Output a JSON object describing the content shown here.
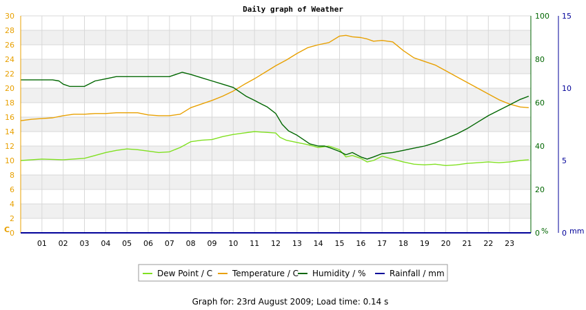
{
  "chart_data": {
    "type": "line",
    "title": "Daily graph of Weather",
    "x_ticks": [
      "01",
      "02",
      "03",
      "04",
      "05",
      "06",
      "07",
      "08",
      "09",
      "10",
      "11",
      "12",
      "13",
      "14",
      "15",
      "16",
      "17",
      "18",
      "19",
      "20",
      "21",
      "22",
      "23"
    ],
    "xlim": [
      0,
      24
    ],
    "axes": {
      "left": {
        "unit": "C",
        "ylim": [
          0,
          30
        ],
        "ticks": [
          0,
          2,
          4,
          6,
          8,
          10,
          12,
          14,
          16,
          18,
          20,
          22,
          24,
          26,
          28,
          30
        ],
        "color": "#e8a000"
      },
      "right1": {
        "unit": "%",
        "ylim": [
          0,
          100
        ],
        "ticks": [
          0,
          20,
          40,
          60,
          80,
          100
        ],
        "color": "#006600"
      },
      "right2": {
        "unit": "mm",
        "ylim": [
          0,
          15
        ],
        "ticks": [
          0,
          5,
          10,
          15
        ],
        "color": "#000099"
      }
    },
    "series": [
      {
        "name": "Dew Point / C",
        "axis": "left",
        "color": "#80e020",
        "x": [
          0,
          1,
          2,
          3,
          3.5,
          4,
          4.5,
          5,
          5.5,
          6,
          6.5,
          7,
          7.5,
          8,
          8.5,
          9,
          9.5,
          10,
          10.5,
          11,
          11.5,
          12,
          12.2,
          12.5,
          13,
          13.5,
          14,
          14.5,
          15,
          15.3,
          15.6,
          16,
          16.3,
          16.6,
          17,
          17.5,
          18,
          18.5,
          19,
          19.5,
          20,
          20.5,
          21,
          21.5,
          22,
          22.5,
          23,
          23.5,
          23.9
        ],
        "y": [
          10.0,
          10.2,
          10.1,
          10.3,
          10.7,
          11.1,
          11.4,
          11.6,
          11.5,
          11.3,
          11.1,
          11.2,
          11.8,
          12.6,
          12.8,
          12.9,
          13.3,
          13.6,
          13.8,
          14.0,
          13.9,
          13.8,
          13.2,
          12.8,
          12.5,
          12.2,
          11.8,
          12.0,
          11.5,
          10.5,
          10.7,
          10.3,
          9.8,
          10.0,
          10.6,
          10.2,
          9.8,
          9.5,
          9.4,
          9.5,
          9.3,
          9.4,
          9.6,
          9.7,
          9.8,
          9.7,
          9.8,
          10.0,
          10.1
        ]
      },
      {
        "name": "Temperature / C",
        "axis": "left",
        "color": "#e8a000",
        "x": [
          0,
          0.5,
          1,
          1.5,
          2,
          2.5,
          3,
          3.5,
          4,
          4.5,
          5,
          5.5,
          6,
          6.5,
          7,
          7.5,
          8,
          8.5,
          9,
          9.5,
          10,
          10.5,
          11,
          11.5,
          12,
          12.5,
          13,
          13.5,
          14,
          14.5,
          15,
          15.3,
          15.6,
          16,
          16.3,
          16.6,
          17,
          17.5,
          18,
          18.5,
          19,
          19.5,
          20,
          20.5,
          21,
          21.5,
          22,
          22.5,
          23,
          23.5,
          23.9
        ],
        "y": [
          15.5,
          15.7,
          15.8,
          15.9,
          16.2,
          16.4,
          16.4,
          16.5,
          16.5,
          16.6,
          16.6,
          16.6,
          16.3,
          16.2,
          16.2,
          16.4,
          17.3,
          17.8,
          18.3,
          18.9,
          19.6,
          20.5,
          21.3,
          22.2,
          23.1,
          23.9,
          24.8,
          25.6,
          26.0,
          26.3,
          27.2,
          27.3,
          27.1,
          27.0,
          26.8,
          26.5,
          26.6,
          26.4,
          25.2,
          24.2,
          23.7,
          23.2,
          22.4,
          21.6,
          20.8,
          20.0,
          19.2,
          18.4,
          17.8,
          17.4,
          17.3
        ]
      },
      {
        "name": "Humidity / %",
        "axis": "right1",
        "color": "#006600",
        "x": [
          0,
          0.5,
          1,
          1.5,
          1.8,
          2,
          2.3,
          3,
          3.2,
          3.5,
          4,
          4.5,
          5,
          5.5,
          6,
          6.5,
          7,
          7.3,
          7.6,
          8,
          8.5,
          9,
          9.5,
          10,
          10.3,
          10.6,
          11,
          11.3,
          11.6,
          12,
          12.3,
          12.6,
          13,
          13.3,
          13.6,
          14,
          14.3,
          14.6,
          15,
          15.3,
          15.6,
          16,
          16.3,
          16.6,
          17,
          17.5,
          18,
          18.5,
          19,
          19.5,
          20,
          20.5,
          21,
          21.5,
          22,
          22.5,
          23,
          23.5,
          23.9
        ],
        "y": [
          70.5,
          70.5,
          70.5,
          70.5,
          70.0,
          68.5,
          67.5,
          67.5,
          68.5,
          70.0,
          71.0,
          72.0,
          72.0,
          72.0,
          72.0,
          72.0,
          72.0,
          73.0,
          74.0,
          73.0,
          71.5,
          70.0,
          68.5,
          67.0,
          65.0,
          63.0,
          61.0,
          59.5,
          58.0,
          55.0,
          50.0,
          47.0,
          45.0,
          43.0,
          41.0,
          40.0,
          40.0,
          39.0,
          37.5,
          36.0,
          37.0,
          35.0,
          34.0,
          35.0,
          36.5,
          37.0,
          38.0,
          39.0,
          40.0,
          41.5,
          43.5,
          45.5,
          48.0,
          51.0,
          54.0,
          56.5,
          59.0,
          61.5,
          63.0
        ]
      },
      {
        "name": "Rainfall / mm",
        "axis": "right2",
        "color": "#000099",
        "x": [
          0,
          24
        ],
        "y": [
          0,
          0
        ]
      }
    ],
    "legend": "bottom",
    "grid": true
  },
  "footer": "Graph for: 23rd August 2009; Load time: 0.14 s"
}
